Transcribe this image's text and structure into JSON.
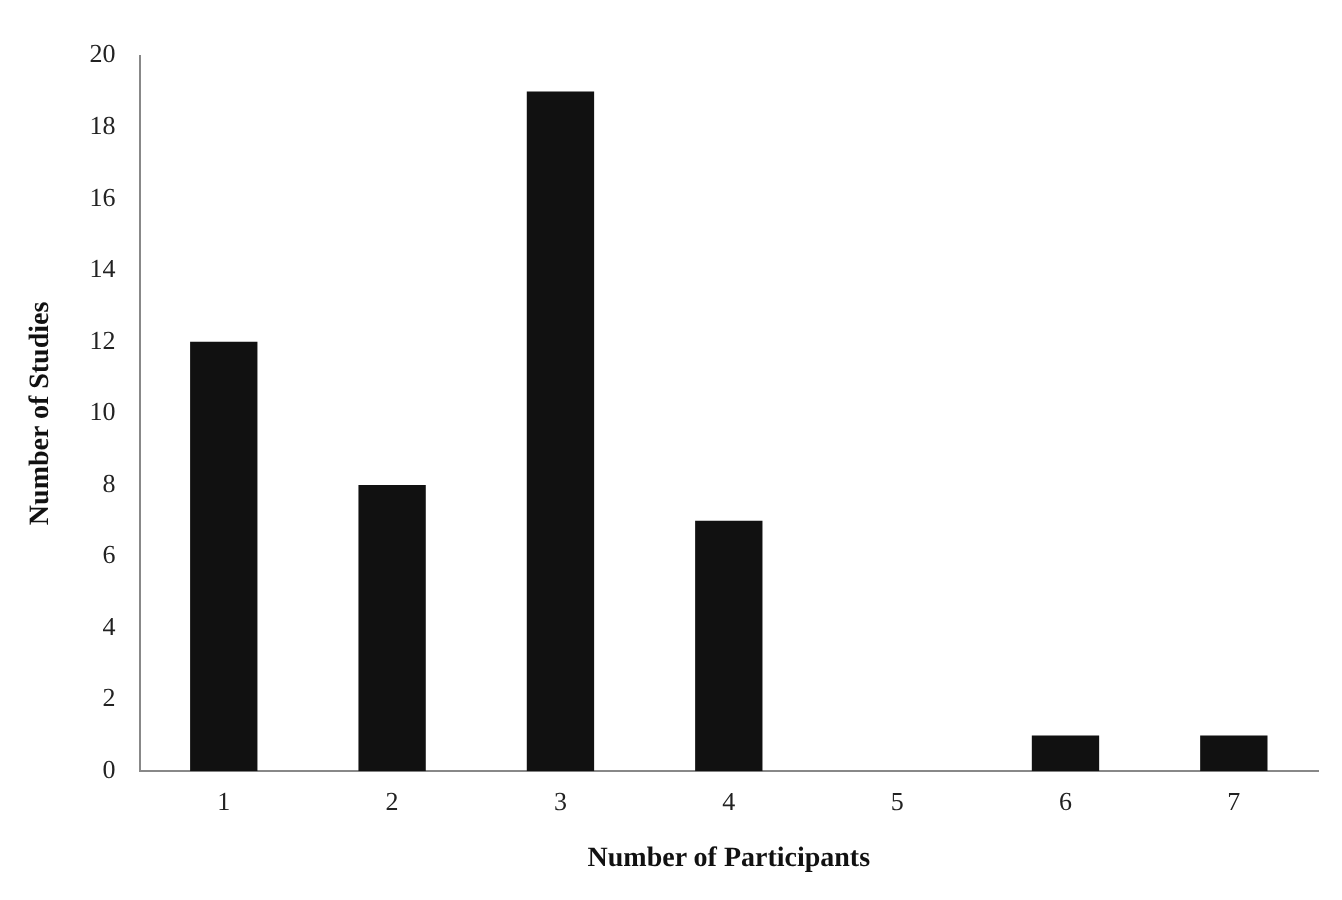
{
  "chart_data": {
    "type": "bar",
    "xlabel": "Number of Participants",
    "ylabel": "Number of Studies",
    "categories": [
      "1",
      "2",
      "3",
      "4",
      "5",
      "6",
      "7"
    ],
    "values": [
      12,
      8,
      19,
      7,
      0,
      1,
      1
    ],
    "color": "#111111",
    "ylim": [
      0,
      20
    ],
    "yticks": [
      0,
      2,
      4,
      6,
      8,
      10,
      12,
      14,
      16,
      18,
      20
    ],
    "grid": false,
    "legend": false
  }
}
